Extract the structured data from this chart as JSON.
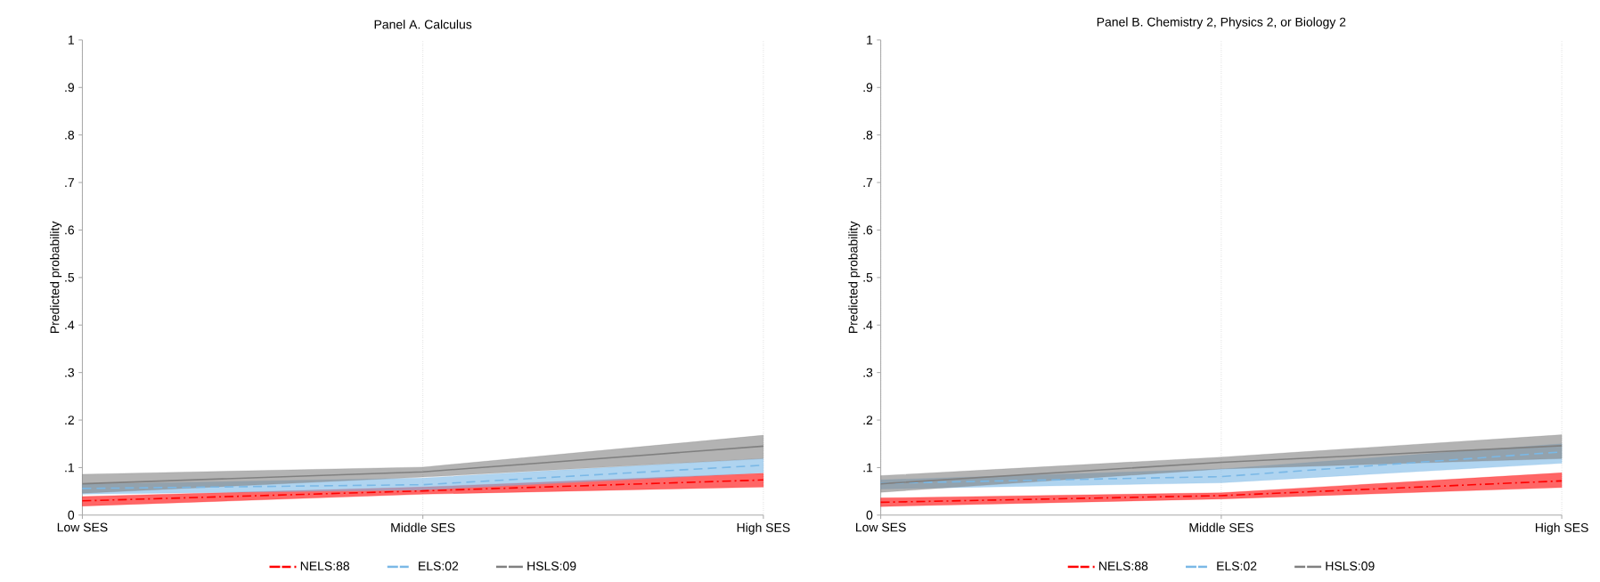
{
  "chart_data": [
    {
      "type": "line",
      "title": "Panel A. Calculus",
      "ylabel": "Predicted probability",
      "categories": [
        "Low SES",
        "Middle SES",
        "High SES"
      ],
      "ylim": [
        0,
        1
      ],
      "yticks": [
        0,
        {
          "value": 0.1,
          "label": ".1"
        },
        {
          "value": 0.2,
          "label": ".2"
        },
        {
          "value": 0.3,
          "label": ".3"
        },
        {
          "value": 0.4,
          "label": ".4"
        },
        {
          "value": 0.5,
          "label": ".5"
        },
        {
          "value": 0.6,
          "label": ".6"
        },
        {
          "value": 0.7,
          "label": ".7"
        },
        {
          "value": 0.8,
          "label": ".8"
        },
        {
          "value": 0.9,
          "label": ".9"
        },
        1
      ],
      "grid": "x",
      "legend": "bottom",
      "series": [
        {
          "name": "NELS:88",
          "color": "#ff0000",
          "line_style": "dashdot",
          "values": [
            0.03,
            0.051,
            0.074
          ],
          "lower": [
            0.019,
            0.044,
            0.059
          ],
          "upper": [
            0.039,
            0.059,
            0.088
          ]
        },
        {
          "name": "ELS:02",
          "color": "#7ab8e6",
          "line_style": "dashed",
          "values": [
            0.056,
            0.064,
            0.105
          ],
          "lower": [
            0.044,
            0.053,
            0.089
          ],
          "upper": [
            0.065,
            0.078,
            0.119
          ]
        },
        {
          "name": "HSLS:09",
          "color": "#808080",
          "line_style": "solid",
          "values": [
            0.066,
            0.091,
            0.145
          ],
          "lower": [
            0.046,
            0.08,
            0.119
          ],
          "upper": [
            0.086,
            0.101,
            0.168
          ]
        }
      ]
    },
    {
      "type": "line",
      "title": "Panel B. Chemistry 2, Physics 2, or Biology 2",
      "ylabel": "Predicted probability",
      "categories": [
        "Low SES",
        "Middle SES",
        "High SES"
      ],
      "ylim": [
        0,
        1
      ],
      "yticks": [
        0,
        {
          "value": 0.1,
          "label": ".1"
        },
        {
          "value": 0.2,
          "label": ".2"
        },
        {
          "value": 0.3,
          "label": ".3"
        },
        {
          "value": 0.4,
          "label": ".4"
        },
        {
          "value": 0.5,
          "label": ".5"
        },
        {
          "value": 0.6,
          "label": ".6"
        },
        {
          "value": 0.7,
          "label": ".7"
        },
        {
          "value": 0.8,
          "label": ".8"
        },
        {
          "value": 0.9,
          "label": ".9"
        },
        1
      ],
      "grid": "x",
      "legend": "bottom",
      "series": [
        {
          "name": "NELS:88",
          "color": "#ff0000",
          "line_style": "dashdot",
          "values": [
            0.027,
            0.041,
            0.072
          ],
          "lower": [
            0.018,
            0.034,
            0.058
          ],
          "upper": [
            0.036,
            0.047,
            0.089
          ]
        },
        {
          "name": "ELS:02",
          "color": "#7ab8e6",
          "line_style": "dashed",
          "values": [
            0.067,
            0.081,
            0.133
          ],
          "lower": [
            0.055,
            0.068,
            0.109
          ],
          "upper": [
            0.074,
            0.097,
            0.15
          ]
        },
        {
          "name": "HSLS:09",
          "color": "#808080",
          "line_style": "solid",
          "values": [
            0.066,
            0.111,
            0.146
          ],
          "lower": [
            0.048,
            0.097,
            0.119
          ],
          "upper": [
            0.083,
            0.122,
            0.169
          ]
        }
      ]
    }
  ]
}
